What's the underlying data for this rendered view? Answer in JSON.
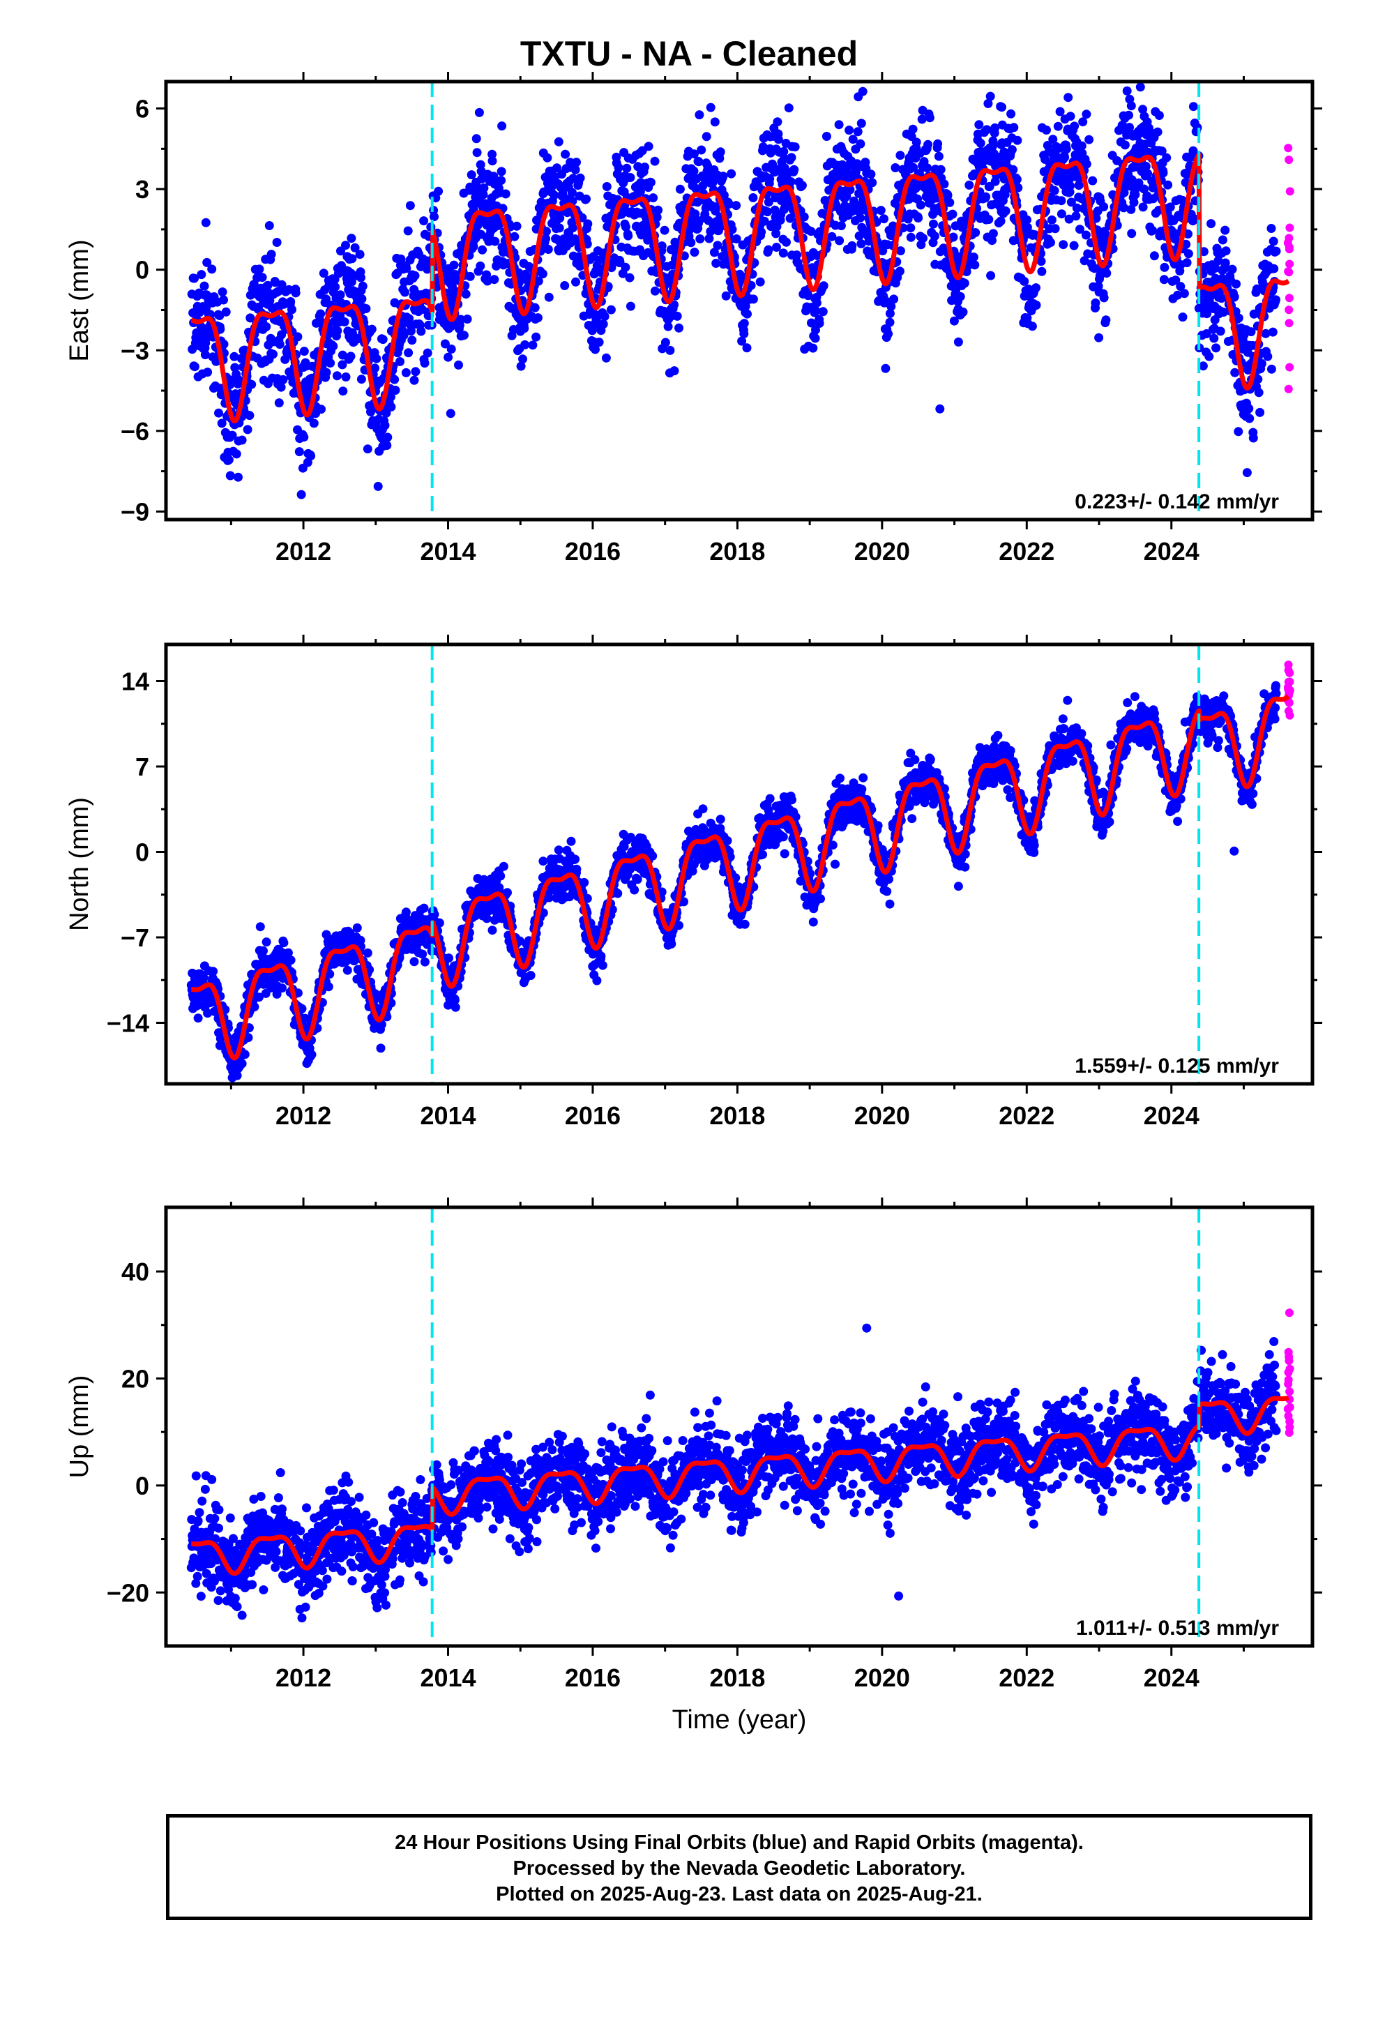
{
  "title": "TXTU  - NA - Cleaned",
  "colors": {
    "final": "#0000ff",
    "rapid": "#ff00ff",
    "model": "#ff0000",
    "break": "#00e5ee"
  },
  "chart_data": [
    {
      "type": "scatter",
      "component": "East",
      "ylabel": "East (mm)",
      "xlim": [
        2010.1,
        2025.95
      ],
      "ylim": [
        -9.3,
        7.0
      ],
      "yticks": [
        6,
        3,
        0,
        -3,
        -6,
        -9
      ],
      "xticks": [
        2012,
        2014,
        2016,
        2018,
        2020,
        2022,
        2024
      ],
      "rate_label": "0.223+/- 0.142 mm/yr",
      "rate": 0.223,
      "offset_at_start": -3.2,
      "seasonal_amplitude": 1.9,
      "scatter_sigma": 1.2,
      "steps": [
        {
          "t": 2013.78,
          "dy": 3.1
        },
        {
          "t": 2024.38,
          "dy": -5.0
        }
      ],
      "data_start": 2010.45,
      "data_end": 2025.45,
      "rapid_end": 2025.62,
      "breaks": [
        2013.78,
        2024.38
      ],
      "xlabel": ""
    },
    {
      "type": "scatter",
      "component": "North",
      "ylabel": "North (mm)",
      "xlim": [
        2010.1,
        2025.95
      ],
      "ylim": [
        -19.0,
        17.0
      ],
      "yticks": [
        14,
        7,
        0,
        -7,
        -14
      ],
      "xticks": [
        2012,
        2014,
        2016,
        2018,
        2020,
        2022,
        2024
      ],
      "rate_label": "1.559+/- 0.125 mm/yr",
      "rate": 1.559,
      "offset_at_start": -13.5,
      "seasonal_amplitude": 3.2,
      "scatter_sigma": 0.9,
      "steps": [
        {
          "t": 2013.78,
          "dy": 1.2
        },
        {
          "t": 2024.38,
          "dy": -0.8
        }
      ],
      "data_start": 2010.45,
      "data_end": 2025.45,
      "rapid_end": 2025.62,
      "breaks": [
        2013.78,
        2024.38
      ],
      "xlabel": ""
    },
    {
      "type": "scatter",
      "component": "Up",
      "ylabel": "Up (mm)",
      "xlim": [
        2010.1,
        2025.95
      ],
      "ylim": [
        -30.0,
        52.0
      ],
      "yticks": [
        40,
        20,
        0,
        -20
      ],
      "xticks": [
        2012,
        2014,
        2016,
        2018,
        2020,
        2022,
        2024
      ],
      "rate_label": "1.011+/- 0.513 mm/yr",
      "rate": 1.011,
      "offset_at_start": -13.0,
      "seasonal_amplitude": 3.0,
      "scatter_sigma": 3.8,
      "steps": [
        {
          "t": 2013.78,
          "dy": 8.0
        },
        {
          "t": 2024.38,
          "dy": 4.0
        }
      ],
      "data_start": 2010.45,
      "data_end": 2025.45,
      "rapid_end": 2025.62,
      "breaks": [
        2013.78,
        2024.38
      ],
      "xlabel": "Time (year)"
    }
  ],
  "footer": {
    "line1": "24 Hour Positions Using Final Orbits (blue) and Rapid Orbits (magenta).",
    "line2": "Processed by the Nevada Geodetic Laboratory.",
    "line3": "Plotted on 2025-Aug-23. Last data on 2025-Aug-21."
  }
}
